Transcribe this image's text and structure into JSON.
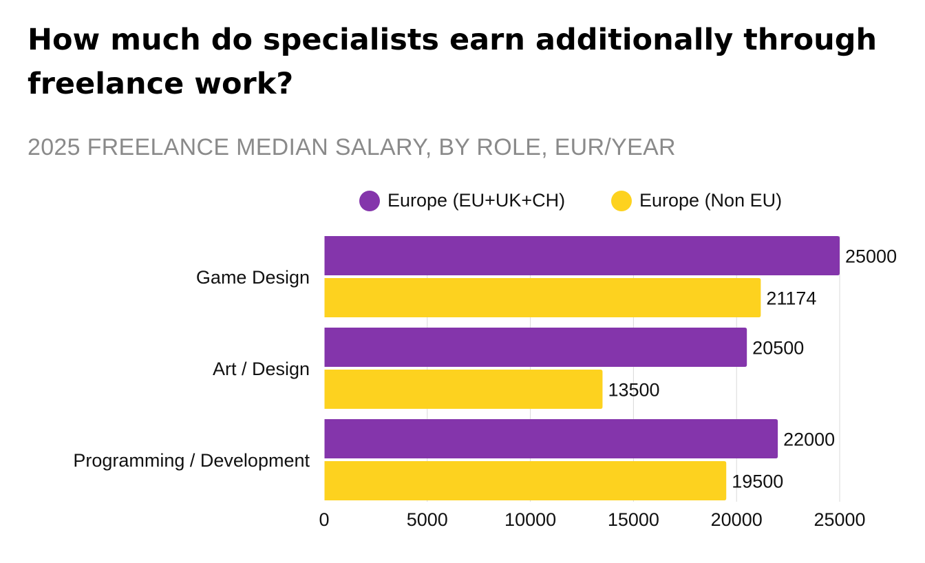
{
  "title": "How much do specialists earn additionally through freelance work?",
  "subtitle": "2025 FREELANCE MEDIAN SALARY, BY ROLE, EUR/YEAR",
  "colors": {
    "series_eu": "#8435ab",
    "series_non_eu": "#fdd21f",
    "grid": "#d9d9d9",
    "subtitle": "#8a8a8a"
  },
  "chart_data": {
    "type": "bar",
    "orientation": "horizontal",
    "title": "How much do specialists earn additionally through freelance work?",
    "subtitle": "2025 FREELANCE MEDIAN SALARY, BY ROLE, EUR/YEAR",
    "categories": [
      "Game Design",
      "Art / Design",
      "Programming / Development"
    ],
    "series": [
      {
        "name": "Europe (EU+UK+CH)",
        "values": [
          25000,
          20500,
          22000
        ]
      },
      {
        "name": "Europe (Non EU)",
        "values": [
          21174,
          13500,
          19500
        ]
      }
    ],
    "xlim": [
      0,
      25000
    ],
    "xticks": [
      0,
      5000,
      10000,
      15000,
      20000,
      25000
    ],
    "xlabel": "",
    "ylabel": "",
    "grid": true,
    "legend_position": "top-right"
  }
}
